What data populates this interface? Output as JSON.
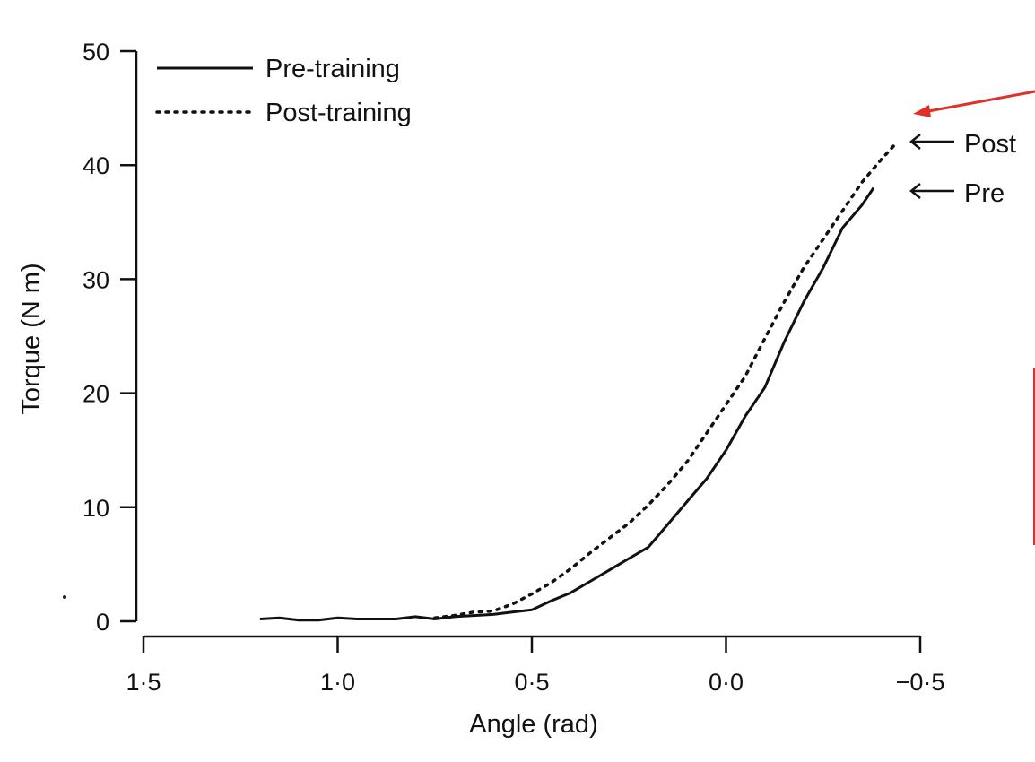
{
  "chart_data": {
    "type": "line",
    "title": "",
    "xlabel": "Angle (rad)",
    "ylabel": "Torque (N m)",
    "xlim": [
      1.5,
      -0.5
    ],
    "ylim": [
      0,
      50
    ],
    "x_ticks": [
      {
        "value": 1.5,
        "label": "1·5"
      },
      {
        "value": 1.0,
        "label": "1·0"
      },
      {
        "value": 0.5,
        "label": "0·5"
      },
      {
        "value": 0.0,
        "label": "0·0"
      },
      {
        "value": -0.5,
        "label": "−0·5"
      }
    ],
    "y_ticks": [
      {
        "value": 0,
        "label": "0"
      },
      {
        "value": 10,
        "label": "10"
      },
      {
        "value": 20,
        "label": "20"
      },
      {
        "value": 30,
        "label": "30"
      },
      {
        "value": 40,
        "label": "40"
      },
      {
        "value": 50,
        "label": "50"
      }
    ],
    "legend_position": "top-left",
    "series": [
      {
        "name": "Pre-training",
        "style": "solid",
        "x": [
          1.2,
          1.15,
          1.1,
          1.05,
          1.0,
          0.95,
          0.9,
          0.85,
          0.8,
          0.75,
          0.7,
          0.65,
          0.6,
          0.55,
          0.5,
          0.45,
          0.4,
          0.35,
          0.3,
          0.25,
          0.2,
          0.15,
          0.1,
          0.05,
          0.0,
          -0.05,
          -0.1,
          -0.15,
          -0.2,
          -0.25,
          -0.3,
          -0.35,
          -0.38
        ],
        "values": [
          0.2,
          0.3,
          0.1,
          0.1,
          0.3,
          0.2,
          0.2,
          0.2,
          0.4,
          0.2,
          0.4,
          0.5,
          0.6,
          0.8,
          1.0,
          1.8,
          2.5,
          3.5,
          4.5,
          5.5,
          6.5,
          8.5,
          10.5,
          12.5,
          15.0,
          18.0,
          20.5,
          24.5,
          28.0,
          31.0,
          34.5,
          36.5,
          38.0
        ]
      },
      {
        "name": "Post-training",
        "style": "dotted",
        "x": [
          0.75,
          0.7,
          0.65,
          0.6,
          0.55,
          0.5,
          0.45,
          0.4,
          0.35,
          0.3,
          0.25,
          0.2,
          0.15,
          0.1,
          0.05,
          0.0,
          -0.05,
          -0.1,
          -0.15,
          -0.2,
          -0.25,
          -0.3,
          -0.35,
          -0.4,
          -0.44
        ],
        "values": [
          0.3,
          0.5,
          0.8,
          0.9,
          1.5,
          2.4,
          3.4,
          4.6,
          6.0,
          7.3,
          8.6,
          10.2,
          12.0,
          14.0,
          16.5,
          19.0,
          21.5,
          24.8,
          28.0,
          31.0,
          33.5,
          36.0,
          38.5,
          40.5,
          42.0
        ]
      }
    ],
    "annotations": [
      {
        "name": "post",
        "label": "Post",
        "y": 42,
        "x_end": -0.44
      },
      {
        "name": "pre",
        "label": "Pre",
        "y": 38,
        "x_end": -0.38
      }
    ],
    "highlight_color": "#e03028"
  }
}
